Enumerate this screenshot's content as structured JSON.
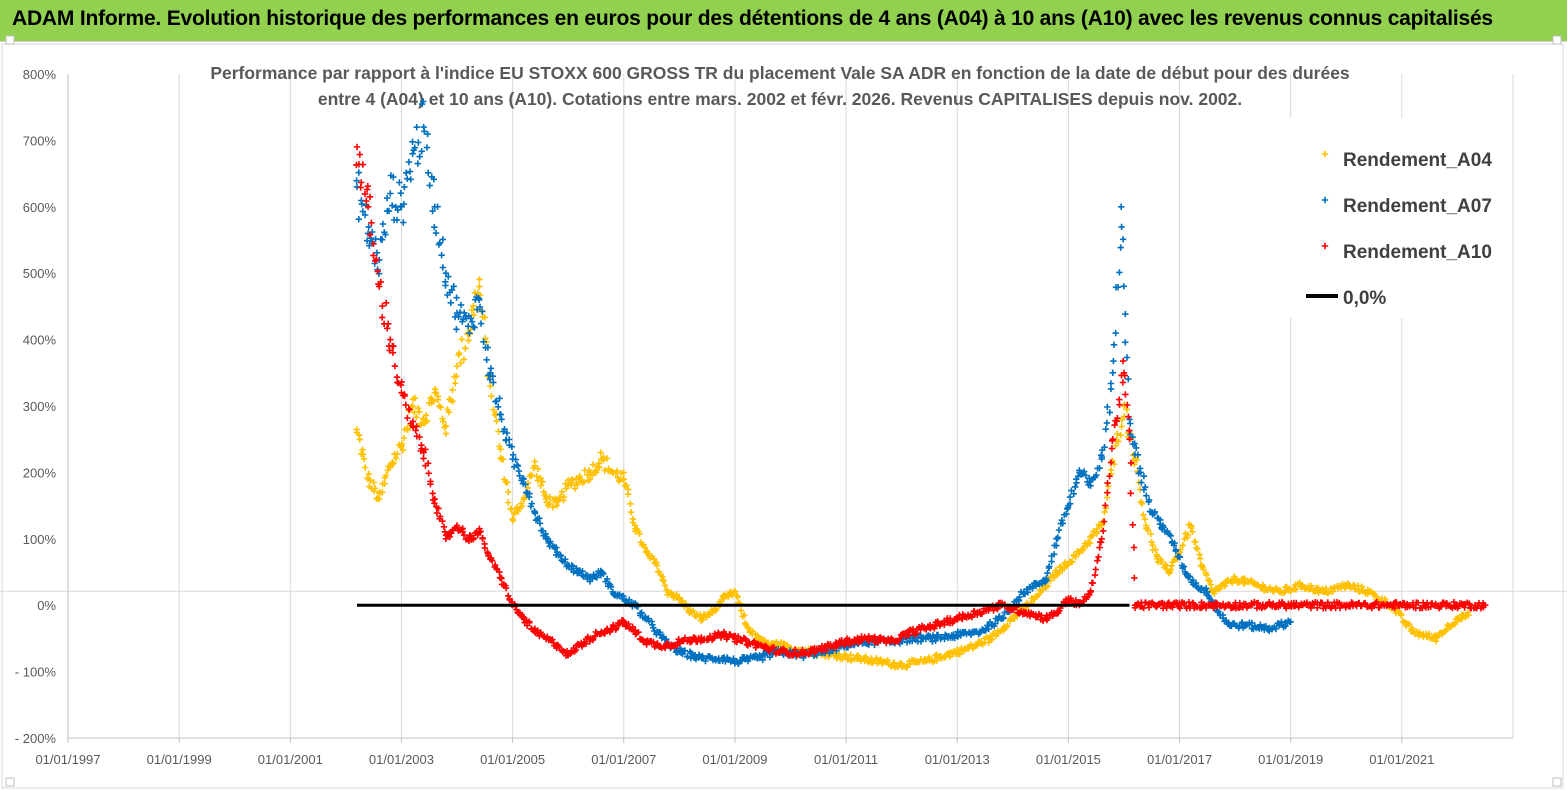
{
  "banner": {
    "title": "ADAM Informe. Evolution historique des performances en euros pour des détentions de 4 ans (A04) à 10 ans (A10) avec les revenus connus capitalisés",
    "background": "#92d050"
  },
  "chart_data": {
    "type": "scatter",
    "title": [
      "Performance par rapport à l'indice EU STOXX 600 GROSS TR  du placement Vale SA ADR en fonction de la date de début pour des durées",
      "entre 4 (A04) et 10 ans (A10). Cotations entre mars. 2002 et févr. 2026. Revenus CAPITALISES depuis nov. 2002."
    ],
    "xlabel": "",
    "ylabel": "",
    "xlim": [
      1997.0,
      2023.0
    ],
    "ylim": [
      -200,
      800
    ],
    "x_tick_values": [
      1997,
      1999,
      2001,
      2003,
      2005,
      2007,
      2009,
      2011,
      2013,
      2015,
      2017,
      2019,
      2021
    ],
    "x_tick_labels": [
      "01/01/1997",
      "01/01/1999",
      "01/01/2001",
      "01/01/2003",
      "01/01/2005",
      "01/01/2007",
      "01/01/2009",
      "01/01/2011",
      "01/01/2013",
      "01/01/2015",
      "01/01/2017",
      "01/01/2019",
      "01/01/2021"
    ],
    "y_tick_values": [
      800,
      700,
      600,
      500,
      400,
      300,
      200,
      100,
      0,
      -100,
      -200
    ],
    "y_tick_labels": [
      "800%",
      "700%",
      "600%",
      "500%",
      "400%",
      "300%",
      "200%",
      "100%",
      "0%",
      "- 100%",
      "- 200%"
    ],
    "grid": "vertical",
    "legend_position": "top-right",
    "series": [
      {
        "name": "Rendement_A04",
        "marker": "+",
        "color": "#ffc000",
        "points": [
          [
            2002.2,
            260
          ],
          [
            2002.4,
            190
          ],
          [
            2002.6,
            160
          ],
          [
            2002.8,
            210
          ],
          [
            2003.0,
            240
          ],
          [
            2003.2,
            300
          ],
          [
            2003.4,
            280
          ],
          [
            2003.6,
            320
          ],
          [
            2003.8,
            270
          ],
          [
            2004.0,
            360
          ],
          [
            2004.2,
            410
          ],
          [
            2004.4,
            480
          ],
          [
            2004.6,
            330
          ],
          [
            2004.8,
            220
          ],
          [
            2005.0,
            130
          ],
          [
            2005.2,
            160
          ],
          [
            2005.4,
            210
          ],
          [
            2005.6,
            160
          ],
          [
            2005.8,
            150
          ],
          [
            2006.0,
            180
          ],
          [
            2006.2,
            190
          ],
          [
            2006.4,
            200
          ],
          [
            2006.6,
            220
          ],
          [
            2006.8,
            200
          ],
          [
            2007.0,
            190
          ],
          [
            2007.2,
            120
          ],
          [
            2007.4,
            80
          ],
          [
            2007.6,
            60
          ],
          [
            2007.8,
            20
          ],
          [
            2008.0,
            10
          ],
          [
            2008.2,
            -10
          ],
          [
            2008.4,
            -20
          ],
          [
            2008.6,
            -10
          ],
          [
            2008.8,
            10
          ],
          [
            2009.0,
            20
          ],
          [
            2009.2,
            -30
          ],
          [
            2009.4,
            -50
          ],
          [
            2009.6,
            -60
          ],
          [
            2009.8,
            -60
          ],
          [
            2010.0,
            -65
          ],
          [
            2010.4,
            -70
          ],
          [
            2010.8,
            -75
          ],
          [
            2011.2,
            -80
          ],
          [
            2011.6,
            -85
          ],
          [
            2012.0,
            -90
          ],
          [
            2012.4,
            -85
          ],
          [
            2012.8,
            -75
          ],
          [
            2013.2,
            -65
          ],
          [
            2013.6,
            -50
          ],
          [
            2014.0,
            -20
          ],
          [
            2014.4,
            10
          ],
          [
            2014.8,
            50
          ],
          [
            2015.2,
            80
          ],
          [
            2015.6,
            120
          ],
          [
            2016.0,
            300
          ],
          [
            2016.2,
            220
          ],
          [
            2016.4,
            120
          ],
          [
            2016.6,
            70
          ],
          [
            2016.8,
            50
          ],
          [
            2017.0,
            80
          ],
          [
            2017.2,
            120
          ],
          [
            2017.4,
            60
          ],
          [
            2017.6,
            20
          ],
          [
            2017.8,
            30
          ],
          [
            2018.0,
            40
          ],
          [
            2018.4,
            30
          ],
          [
            2018.8,
            20
          ],
          [
            2019.2,
            30
          ],
          [
            2019.6,
            20
          ],
          [
            2020.0,
            30
          ],
          [
            2020.4,
            20
          ],
          [
            2020.8,
            0
          ],
          [
            2021.2,
            -40
          ],
          [
            2021.6,
            -50
          ],
          [
            2022.0,
            -20
          ],
          [
            2022.2,
            -15
          ]
        ]
      },
      {
        "name": "Rendement_A07",
        "marker": "+",
        "color": "#0070c0",
        "points": [
          [
            2002.2,
            630
          ],
          [
            2002.4,
            560
          ],
          [
            2002.6,
            520
          ],
          [
            2002.8,
            620
          ],
          [
            2003.0,
            600
          ],
          [
            2003.2,
            680
          ],
          [
            2003.4,
            720
          ],
          [
            2003.6,
            600
          ],
          [
            2003.8,
            500
          ],
          [
            2004.0,
            440
          ],
          [
            2004.2,
            420
          ],
          [
            2004.4,
            460
          ],
          [
            2004.6,
            350
          ],
          [
            2004.8,
            280
          ],
          [
            2005.0,
            220
          ],
          [
            2005.2,
            190
          ],
          [
            2005.4,
            140
          ],
          [
            2005.6,
            100
          ],
          [
            2005.8,
            80
          ],
          [
            2006.0,
            60
          ],
          [
            2006.2,
            50
          ],
          [
            2006.4,
            40
          ],
          [
            2006.6,
            50
          ],
          [
            2006.8,
            20
          ],
          [
            2007.0,
            10
          ],
          [
            2007.2,
            0
          ],
          [
            2007.4,
            -20
          ],
          [
            2007.6,
            -40
          ],
          [
            2007.8,
            -60
          ],
          [
            2008.0,
            -70
          ],
          [
            2008.4,
            -80
          ],
          [
            2008.8,
            -80
          ],
          [
            2009.0,
            -85
          ],
          [
            2009.4,
            -80
          ],
          [
            2009.8,
            -70
          ],
          [
            2010.2,
            -75
          ],
          [
            2010.6,
            -70
          ],
          [
            2011.0,
            -60
          ],
          [
            2011.4,
            -55
          ],
          [
            2011.8,
            -55
          ],
          [
            2012.2,
            -50
          ],
          [
            2012.6,
            -50
          ],
          [
            2013.0,
            -45
          ],
          [
            2013.4,
            -40
          ],
          [
            2013.8,
            -20
          ],
          [
            2014.2,
            20
          ],
          [
            2014.6,
            40
          ],
          [
            2014.8,
            100
          ],
          [
            2015.0,
            150
          ],
          [
            2015.2,
            200
          ],
          [
            2015.4,
            180
          ],
          [
            2015.6,
            220
          ],
          [
            2015.8,
            350
          ],
          [
            2015.95,
            600
          ],
          [
            2016.1,
            280
          ],
          [
            2016.3,
            200
          ],
          [
            2016.5,
            140
          ],
          [
            2016.7,
            120
          ],
          [
            2016.9,
            90
          ],
          [
            2017.1,
            50
          ],
          [
            2017.3,
            30
          ],
          [
            2017.5,
            20
          ],
          [
            2017.7,
            -10
          ],
          [
            2017.9,
            -30
          ],
          [
            2018.2,
            -30
          ],
          [
            2018.6,
            -35
          ],
          [
            2019.0,
            -25
          ]
        ]
      },
      {
        "name": "Rendement_A10",
        "marker": "+",
        "color": "#ff0000",
        "points": [
          [
            2002.2,
            690
          ],
          [
            2002.4,
            600
          ],
          [
            2002.6,
            480
          ],
          [
            2002.8,
            400
          ],
          [
            2003.0,
            320
          ],
          [
            2003.2,
            270
          ],
          [
            2003.4,
            230
          ],
          [
            2003.6,
            160
          ],
          [
            2003.8,
            100
          ],
          [
            2004.0,
            120
          ],
          [
            2004.2,
            100
          ],
          [
            2004.4,
            110
          ],
          [
            2004.6,
            70
          ],
          [
            2004.8,
            40
          ],
          [
            2005.0,
            0
          ],
          [
            2005.2,
            -20
          ],
          [
            2005.4,
            -40
          ],
          [
            2005.6,
            -50
          ],
          [
            2005.8,
            -60
          ],
          [
            2006.0,
            -75
          ],
          [
            2006.2,
            -60
          ],
          [
            2006.4,
            -50
          ],
          [
            2006.6,
            -40
          ],
          [
            2006.8,
            -35
          ],
          [
            2007.0,
            -25
          ],
          [
            2007.2,
            -40
          ],
          [
            2007.4,
            -55
          ],
          [
            2007.6,
            -60
          ],
          [
            2007.8,
            -60
          ],
          [
            2008.0,
            -55
          ],
          [
            2008.4,
            -50
          ],
          [
            2008.8,
            -45
          ],
          [
            2009.0,
            -50
          ],
          [
            2009.4,
            -60
          ],
          [
            2009.8,
            -70
          ],
          [
            2010.2,
            -72
          ],
          [
            2010.6,
            -65
          ],
          [
            2011.0,
            -55
          ],
          [
            2011.4,
            -50
          ],
          [
            2011.8,
            -55
          ],
          [
            2012.2,
            -40
          ],
          [
            2012.6,
            -30
          ],
          [
            2013.0,
            -20
          ],
          [
            2013.4,
            -10
          ],
          [
            2013.8,
            0
          ],
          [
            2014.2,
            -10
          ],
          [
            2014.6,
            -20
          ],
          [
            2014.8,
            -10
          ],
          [
            2015.0,
            10
          ],
          [
            2015.2,
            0
          ],
          [
            2015.4,
            20
          ],
          [
            2015.6,
            100
          ],
          [
            2015.8,
            250
          ],
          [
            2016.0,
            350
          ],
          [
            2016.1,
            250
          ],
          [
            2016.2,
            0
          ],
          [
            2016.6,
            0
          ],
          [
            2017.0,
            0
          ],
          [
            2018.0,
            0
          ],
          [
            2019.0,
            0
          ],
          [
            2020.0,
            0
          ],
          [
            2021.0,
            0
          ],
          [
            2022.0,
            0
          ],
          [
            2022.5,
            0
          ]
        ]
      },
      {
        "name": "0,0%",
        "marker": "line",
        "color": "#000000",
        "points": [
          [
            2002.2,
            0
          ],
          [
            2016.1,
            0
          ]
        ]
      }
    ]
  }
}
